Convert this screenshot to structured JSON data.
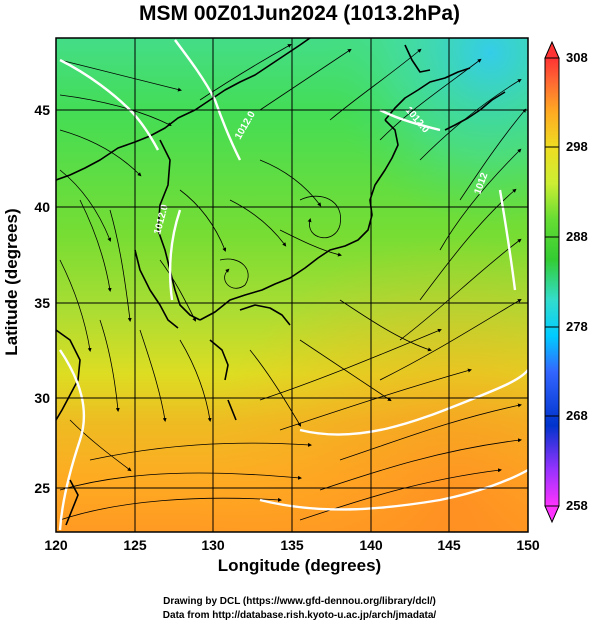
{
  "title": "MSM 00Z01Jun2024 (1013.2hPa)",
  "axes": {
    "xlabel": "Longitude (degrees)",
    "ylabel": "Latitude  (degrees)",
    "x_ticks": [
      "120",
      "125",
      "130",
      "135",
      "140",
      "145",
      "150"
    ],
    "y_ticks": [
      "25",
      "30",
      "35",
      "40",
      "45"
    ],
    "xlim": [
      120,
      150
    ],
    "ylim": [
      22.4,
      47.6
    ]
  },
  "colorbar": {
    "labels": [
      "308",
      "298",
      "288",
      "278",
      "268",
      "258"
    ],
    "range": [
      258,
      308
    ],
    "colors": [
      "#ff33ff",
      "#9933ff",
      "#0033cc",
      "#3366ff",
      "#00ccff",
      "#33ddcc",
      "#33cc33",
      "#66dd33",
      "#ccee33",
      "#eedd22",
      "#ffaa22",
      "#ff6633",
      "#ff3333"
    ]
  },
  "contours": {
    "labels": [
      "1012.0",
      "1012.0",
      "1012.0",
      "1012"
    ],
    "color": "#ffffff"
  },
  "credits": {
    "line1": "Drawing by DCL (https://www.gfd-dennou.org/library/dcl/)",
    "line2": "Data from http://database.rish.kyoto-u.ac.jp/arch/jmadata/"
  }
}
